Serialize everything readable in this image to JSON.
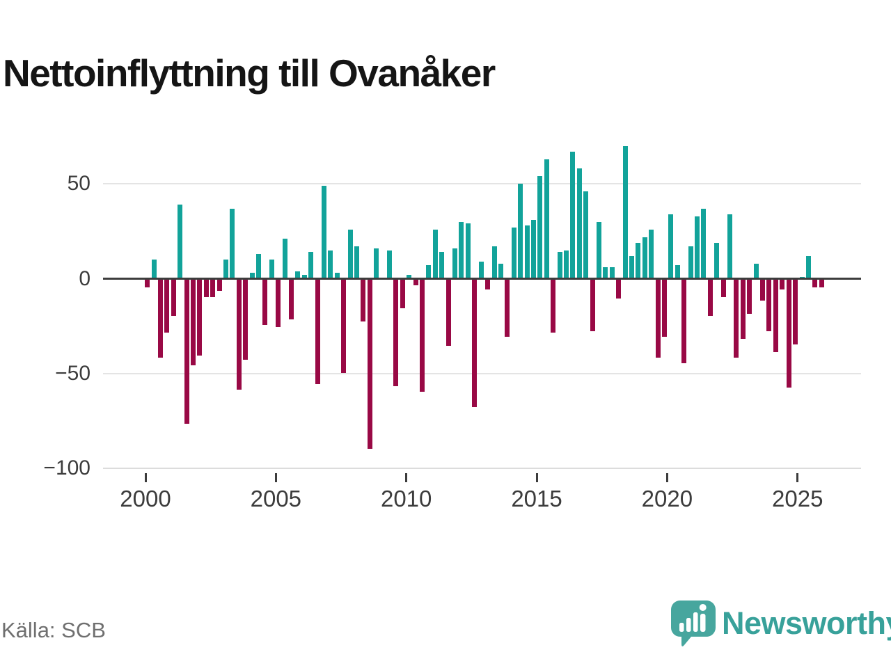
{
  "title": "Nettoinflyttning till Ovanåker",
  "source": "Källa: SCB",
  "logo": {
    "text": "Newsworthy",
    "icon": "newsworthy-speech-bubble-bar-chart-icon"
  },
  "chart_data": {
    "type": "bar",
    "title": "Nettoinflyttning till Ovanåker",
    "xlabel": "",
    "ylabel": "",
    "legend": "none",
    "grid": "horizontal",
    "ylim": [
      -100,
      72
    ],
    "x_range_years": [
      2000,
      2025
    ],
    "period": "quarterly",
    "colors": {
      "positive": "#12a39a",
      "negative": "#990945"
    },
    "y_ticks": [
      {
        "v": 50,
        "label": "50"
      },
      {
        "v": 0,
        "label": "0"
      },
      {
        "v": -50,
        "label": "−50"
      },
      {
        "v": -100,
        "label": "−100"
      }
    ],
    "x_ticks": [
      {
        "year": 2000,
        "label": "2000"
      },
      {
        "year": 2005,
        "label": "2005"
      },
      {
        "year": 2010,
        "label": "2010"
      },
      {
        "year": 2015,
        "label": "2015"
      },
      {
        "year": 2020,
        "label": "2020"
      },
      {
        "year": 2025,
        "label": "2025"
      }
    ],
    "series": [
      {
        "name": "Nettoinflyttning per kvartal",
        "years": [
          {
            "year": 2000,
            "q": [
              -4,
              10,
              -41,
              -28
            ]
          },
          {
            "year": 2001,
            "q": [
              -19,
              39,
              -76,
              -45
            ]
          },
          {
            "year": 2002,
            "q": [
              -40,
              -9,
              -9,
              -6
            ]
          },
          {
            "year": 2003,
            "q": [
              10,
              37,
              -58,
              -42
            ]
          },
          {
            "year": 2004,
            "q": [
              3,
              13,
              -24,
              10
            ]
          },
          {
            "year": 2005,
            "q": [
              -25,
              21,
              -21,
              4
            ]
          },
          {
            "year": 2006,
            "q": [
              2,
              14,
              -55,
              49
            ]
          },
          {
            "year": 2007,
            "q": [
              15,
              3,
              -49,
              26
            ]
          },
          {
            "year": 2008,
            "q": [
              17,
              -22,
              -89,
              16
            ]
          },
          {
            "year": 2009,
            "q": [
              0,
              15,
              -56,
              -15
            ]
          },
          {
            "year": 2010,
            "q": [
              2,
              -3,
              -59,
              7
            ]
          },
          {
            "year": 2011,
            "q": [
              26,
              14,
              -35,
              16
            ]
          },
          {
            "year": 2012,
            "q": [
              30,
              29,
              -67,
              9
            ]
          },
          {
            "year": 2013,
            "q": [
              -5,
              17,
              8,
              -30
            ]
          },
          {
            "year": 2014,
            "q": [
              27,
              50,
              28,
              31
            ]
          },
          {
            "year": 2015,
            "q": [
              54,
              63,
              -28,
              14
            ]
          },
          {
            "year": 2016,
            "q": [
              15,
              67,
              58,
              46
            ]
          },
          {
            "year": 2017,
            "q": [
              -27,
              30,
              6,
              6
            ]
          },
          {
            "year": 2018,
            "q": [
              -10,
              70,
              12,
              19
            ]
          },
          {
            "year": 2019,
            "q": [
              22,
              26,
              -41,
              -30
            ]
          },
          {
            "year": 2020,
            "q": [
              34,
              7,
              -44,
              17
            ]
          },
          {
            "year": 2021,
            "q": [
              33,
              37,
              -19,
              19
            ]
          },
          {
            "year": 2022,
            "q": [
              -9,
              34,
              -41,
              -31
            ]
          },
          {
            "year": 2023,
            "q": [
              -18,
              8,
              -11,
              -27
            ]
          },
          {
            "year": 2024,
            "q": [
              -38,
              -5,
              -57,
              -34
            ]
          },
          {
            "year": 2025,
            "q": [
              1,
              12,
              -4,
              -4
            ]
          }
        ]
      }
    ]
  }
}
